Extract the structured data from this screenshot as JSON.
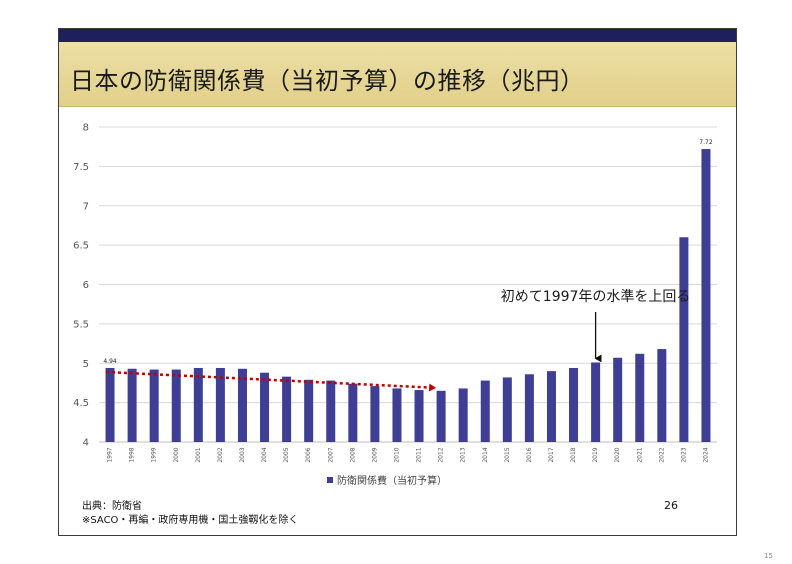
{
  "slide": {
    "title": "日本の防衛関係費（当初予算）の推移（兆円）",
    "source_line1": "出典：防衛省",
    "source_line2": "※SACO・再編・政府専用機・国土強靱化を除く",
    "slide_page": "26",
    "outer_page": "15"
  },
  "colors": {
    "bar": "#3e3f94",
    "trend_arrow": "#c00000",
    "title_band": "#e6d594",
    "top_band": "#1f1f5e"
  },
  "chart_data": {
    "type": "bar",
    "title": "",
    "xlabel": "",
    "ylabel": "",
    "ylim": [
      4,
      8
    ],
    "yticks": [
      4,
      4.5,
      5,
      5.5,
      6,
      6.5,
      7,
      7.5,
      8
    ],
    "grid": true,
    "legend_position": "bottom",
    "categories": [
      "1997",
      "1998",
      "1999",
      "2000",
      "2001",
      "2002",
      "2003",
      "2004",
      "2005",
      "2006",
      "2007",
      "2008",
      "2009",
      "2010",
      "2011",
      "2012",
      "2013",
      "2014",
      "2015",
      "2016",
      "2017",
      "2018",
      "2019",
      "2020",
      "2021",
      "2022",
      "2023",
      "2024"
    ],
    "series": [
      {
        "name": "防衛関係費（当初予算）",
        "values": [
          4.94,
          4.93,
          4.92,
          4.92,
          4.94,
          4.94,
          4.93,
          4.88,
          4.83,
          4.79,
          4.78,
          4.74,
          4.71,
          4.68,
          4.66,
          4.65,
          4.68,
          4.78,
          4.82,
          4.86,
          4.9,
          4.94,
          5.01,
          5.07,
          5.12,
          5.18,
          6.6,
          7.72
        ]
      }
    ],
    "data_labels": [
      {
        "index": 0,
        "text": "4.94"
      },
      {
        "index": 27,
        "text": "7.72"
      }
    ],
    "annotations": [
      {
        "text": "初めて1997年の水準を上回る",
        "points_to": "2019"
      },
      {
        "text": "",
        "type": "dotted-trend-arrow",
        "from": "1997",
        "to": "2012"
      }
    ]
  }
}
